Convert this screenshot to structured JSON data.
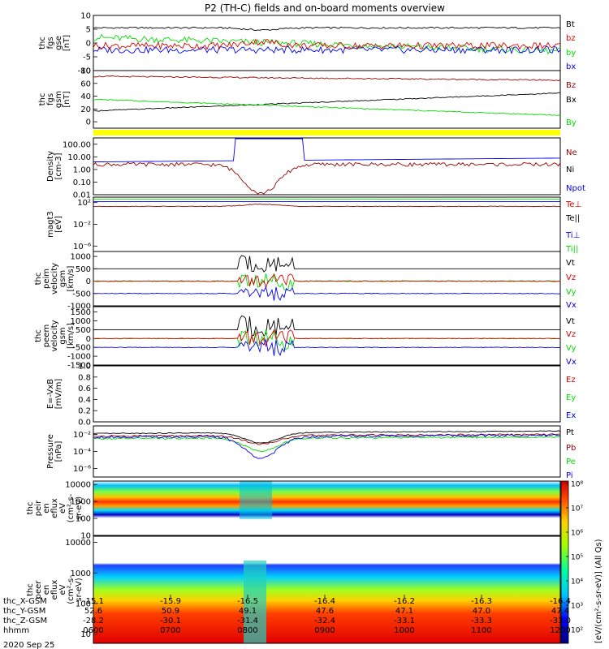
{
  "title": "P2 (TH-C) fields and on-board moments overview",
  "colors": {
    "black": "#000000",
    "red": "#dd0000",
    "green": "#00dd00",
    "blue": "#0000ee",
    "darkred": "#990000",
    "yellow": "#ffff00"
  },
  "panels": [
    {
      "id": "fgs-gse",
      "ylabel": [
        "thc",
        "fgs",
        "gse",
        "[nT]"
      ],
      "ticks": [
        {
          "v": 10,
          "label": "10"
        },
        {
          "v": 5,
          "label": "5"
        },
        {
          "v": 0,
          "label": "0"
        },
        {
          "v": -5,
          "label": "-5"
        },
        {
          "v": -10,
          "label": "-10"
        }
      ],
      "ylim": [
        -10,
        10
      ],
      "scale": "linear",
      "legend": [
        {
          "text": "Bt",
          "color": "black"
        },
        {
          "text": "bz",
          "color": "red"
        },
        {
          "text": "by",
          "color": "green"
        },
        {
          "text": "bx",
          "color": "blue"
        }
      ]
    },
    {
      "id": "fgs-gsm",
      "ylabel": [
        "thc",
        "fgs",
        "gsm",
        "[nT]"
      ],
      "ticks": [
        {
          "v": 80,
          "label": "80"
        },
        {
          "v": 60,
          "label": "60"
        },
        {
          "v": 40,
          "label": "40"
        },
        {
          "v": 20,
          "label": "20"
        },
        {
          "v": 0,
          "label": "0"
        }
      ],
      "ylim": [
        -10,
        80
      ],
      "scale": "linear",
      "legend": [
        {
          "text": "Bz",
          "color": "darkred"
        },
        {
          "text": "Bx",
          "color": "black"
        },
        {
          "text": "By",
          "color": "green"
        }
      ]
    },
    {
      "id": "density",
      "ylabel": [
        "Density",
        "[cm-3]"
      ],
      "ticks": [
        {
          "v": 2,
          "label": "100.00"
        },
        {
          "v": 1,
          "label": "10.00"
        },
        {
          "v": 0,
          "label": "1.00"
        },
        {
          "v": -1,
          "label": "0.10"
        },
        {
          "v": -2,
          "label": "0.01"
        }
      ],
      "ylim": [
        -2,
        2.5
      ],
      "scale": "log",
      "legend": [
        {
          "text": "Ne",
          "color": "darkred"
        },
        {
          "text": "Ni",
          "color": "black"
        },
        {
          "text": "Npot",
          "color": "blue"
        }
      ]
    },
    {
      "id": "temperature",
      "ylabel": [
        "magt3",
        "[eV]"
      ],
      "ticks": [
        {
          "v": 2,
          "label": "10²"
        },
        {
          "v": -2,
          "label": "10⁻²"
        },
        {
          "v": -6,
          "label": "10⁻⁶"
        }
      ],
      "ylim": [
        -7,
        3
      ],
      "scale": "log",
      "legend": [
        {
          "text": "Te⊥",
          "color": "red"
        },
        {
          "text": "Te||",
          "color": "black"
        },
        {
          "text": "Ti⊥",
          "color": "blue"
        },
        {
          "text": "Ti||",
          "color": "green"
        }
      ]
    },
    {
      "id": "peim-velocity",
      "ylabel": [
        "thc",
        "peim",
        "velocity",
        "gsm",
        "[km/s]"
      ],
      "ticks": [
        {
          "v": 1000,
          "label": "1000"
        },
        {
          "v": 500,
          "label": "500"
        },
        {
          "v": 0,
          "label": "0"
        },
        {
          "v": -500,
          "label": "-500"
        },
        {
          "v": -1000,
          "label": "-1000"
        }
      ],
      "ylim": [
        -1000,
        1200
      ],
      "scale": "linear",
      "legend": [
        {
          "text": "Vt",
          "color": "black"
        },
        {
          "text": "Vz",
          "color": "red"
        },
        {
          "text": "Vy",
          "color": "green"
        },
        {
          "text": "Vx",
          "color": "blue"
        }
      ]
    },
    {
      "id": "peem-velocity",
      "ylabel": [
        "thc",
        "peem",
        "velocity",
        "gsm",
        "[km/s]"
      ],
      "ticks": [
        {
          "v": 1500,
          "label": "1500"
        },
        {
          "v": 1000,
          "label": "1000"
        },
        {
          "v": 500,
          "label": "500"
        },
        {
          "v": 0,
          "label": "0"
        },
        {
          "v": -500,
          "label": "-500"
        },
        {
          "v": -1000,
          "label": "-1000"
        },
        {
          "v": -1500,
          "label": "-1500"
        }
      ],
      "ylim": [
        -1500,
        1800
      ],
      "scale": "linear",
      "legend": [
        {
          "text": "Vt",
          "color": "black"
        },
        {
          "text": "Vz",
          "color": "red"
        },
        {
          "text": "Vy",
          "color": "green"
        },
        {
          "text": "Vx",
          "color": "blue"
        }
      ]
    },
    {
      "id": "efield",
      "ylabel": [
        "E=-VxB",
        "[mV/m]"
      ],
      "ticks": [
        {
          "v": 1.0,
          "label": "1.0"
        },
        {
          "v": 0.8,
          "label": "0.8"
        },
        {
          "v": 0.6,
          "label": "0.6"
        },
        {
          "v": 0.4,
          "label": "0.4"
        },
        {
          "v": 0.2,
          "label": "0.2"
        },
        {
          "v": 0.0,
          "label": "0.0"
        }
      ],
      "ylim": [
        0,
        1
      ],
      "scale": "linear",
      "legend": [
        {
          "text": "Ez",
          "color": "red"
        },
        {
          "text": "Ey",
          "color": "green"
        },
        {
          "text": "Ex",
          "color": "blue"
        }
      ]
    },
    {
      "id": "pressure",
      "ylabel": [
        "Pressure",
        "[nPa]"
      ],
      "ticks": [
        {
          "v": -2,
          "label": "10⁻²"
        },
        {
          "v": -4,
          "label": "10⁻⁴"
        },
        {
          "v": -6,
          "label": "10⁻⁶"
        }
      ],
      "ylim": [
        -7,
        -1
      ],
      "scale": "log",
      "legend": [
        {
          "text": "Pt",
          "color": "black"
        },
        {
          "text": "Pb",
          "color": "darkred"
        },
        {
          "text": "Pe",
          "color": "green"
        },
        {
          "text": "Pi",
          "color": "blue"
        }
      ]
    },
    {
      "id": "peir-eflux",
      "ylabel": [
        "thc",
        "peir",
        "en",
        "eflux",
        "eV",
        "(cm²-s-",
        "sr-eV)"
      ],
      "ticks": [
        {
          "v": 4,
          "label": "10000"
        },
        {
          "v": 3,
          "label": "1000"
        },
        {
          "v": 2,
          "label": "100"
        },
        {
          "v": 1,
          "label": "10"
        }
      ],
      "ylim": [
        1,
        4.2
      ],
      "scale": "log"
    },
    {
      "id": "peer-eflux",
      "ylabel": [
        "thc",
        "peer",
        "en",
        "eflux",
        "eV",
        "(cm²-s-",
        "sr-eV)"
      ],
      "ticks": [
        {
          "v": 4,
          "label": "10000"
        },
        {
          "v": 3,
          "label": "1000"
        },
        {
          "v": 2,
          "label": "100"
        },
        {
          "v": 1,
          "label": "10"
        }
      ],
      "ylim": [
        0.7,
        4.2
      ],
      "scale": "log"
    }
  ],
  "colorbar": {
    "ticks": [
      "10⁸",
      "10⁷",
      "10⁶",
      "10⁵",
      "10⁴",
      "10³",
      "10²"
    ],
    "label": "[eV/(cm²-s-sr-eV)] (All Qs)"
  },
  "time_axis": {
    "rows": [
      {
        "label": "thc_X-GSM",
        "values": [
          "-15.1",
          "-15.9",
          "-16.5",
          "-16.4",
          "-16.2",
          "-16.3",
          "-16.4"
        ]
      },
      {
        "label": "thc_Y-GSM",
        "values": [
          "52.6",
          "50.9",
          "49.1",
          "47.6",
          "47.1",
          "47.0",
          "47.4"
        ]
      },
      {
        "label": "thc_Z-GSM",
        "values": [
          "-28.2",
          "-30.1",
          "-31.4",
          "-32.4",
          "-33.1",
          "-33.3",
          "-33.0"
        ]
      },
      {
        "label": "hhmm",
        "values": [
          "0600",
          "0700",
          "0800",
          "0900",
          "1000",
          "1100",
          "1200"
        ]
      }
    ],
    "date": "2020 Sep 25"
  },
  "chart_data": {
    "type": "line",
    "x": [
      "0600",
      "0700",
      "0800",
      "0900",
      "1000",
      "1100",
      "1200"
    ],
    "series": [
      {
        "name": "Bt",
        "values": [
          6,
          5.5,
          4.5,
          5.5,
          6,
          5.8,
          5
        ]
      },
      {
        "name": "bz",
        "values": [
          -2,
          -1,
          0,
          -2,
          -1.5,
          -1,
          -2
        ]
      },
      {
        "name": "by",
        "values": [
          4,
          3,
          2,
          3,
          2,
          1,
          -1
        ]
      },
      {
        "name": "bx",
        "values": [
          -3,
          -3,
          -2,
          -3,
          -2,
          -2,
          -3
        ]
      },
      {
        "name": "Bz",
        "values": [
          72,
          70,
          66,
          68,
          66,
          68,
          66
        ]
      },
      {
        "name": "Bx",
        "values": [
          18,
          20,
          25,
          28,
          32,
          36,
          42
        ]
      },
      {
        "name": "By",
        "values": [
          35,
          30,
          25,
          22,
          18,
          16,
          10
        ]
      },
      {
        "name": "Ne",
        "values": [
          2.5,
          2.5,
          0.02,
          3,
          3,
          3,
          4
        ]
      },
      {
        "name": "Npot",
        "values": [
          5,
          5,
          200,
          5,
          5,
          5,
          8
        ]
      },
      {
        "name": "Vt",
        "values": [
          500,
          500,
          800,
          500,
          500,
          500,
          600
        ]
      },
      {
        "name": "Vx",
        "values": [
          -500,
          -500,
          -300,
          -500,
          -500,
          -500,
          -550
        ]
      },
      {
        "name": "Pt",
        "values": [
          0.01,
          0.012,
          0.001,
          0.01,
          0.012,
          0.015,
          0.02
        ]
      }
    ]
  }
}
